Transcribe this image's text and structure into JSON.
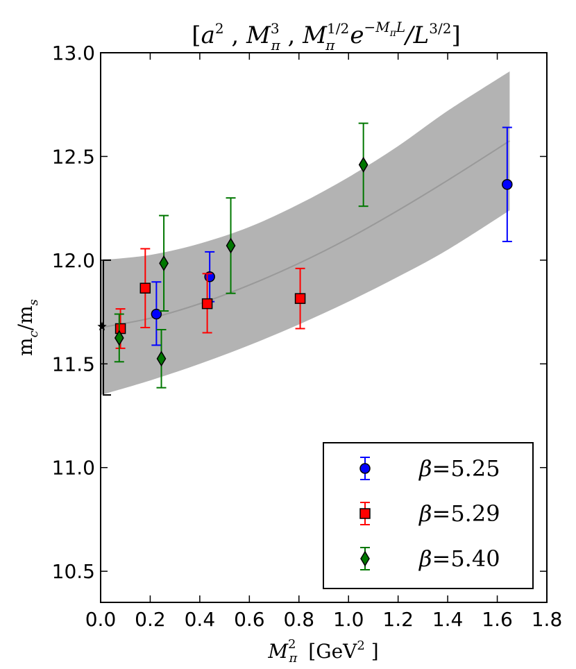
{
  "chart_data": {
    "type": "scatter",
    "title": {
      "open": "[",
      "t1": "a",
      "t1_sup": "2",
      "sep1": " , ",
      "t2": "M",
      "t2_sub": "π",
      "t2_sup": "3",
      "sep2": " , ",
      "t3": "M",
      "t3_sub": "π",
      "t3_sup": "1/2",
      "t3_exp": "e",
      "t3_exp_sup": "−M",
      "t3_exp_sub": "π",
      "t3_exp_sup_tail": "L",
      "t3_div": "/L",
      "t3_div_sup": "3/2",
      "close": "]"
    },
    "xlabel": {
      "main": "M",
      "sub": "π",
      "sup": "2",
      "unit_open": "[GeV",
      "unit_sup": "2",
      "unit_close": " ]"
    },
    "ylabel": {
      "main": "m",
      "sub1": "c",
      "slash": "/m",
      "sub2": "s"
    },
    "xlim": [
      0.0,
      1.8
    ],
    "ylim": [
      10.35,
      13.0
    ],
    "xticks": [
      "0.0",
      "0.2",
      "0.4",
      "0.6",
      "0.8",
      "1.0",
      "1.2",
      "1.4",
      "1.6",
      "1.8"
    ],
    "yticks": [
      "10.5",
      "11.0",
      "11.5",
      "12.0",
      "12.5",
      "13.0"
    ],
    "grid": false,
    "legend_position": "bottom-right",
    "band": {
      "color": "#b3b3b3",
      "line_color": "#999999",
      "x": [
        0.0,
        0.2,
        0.4,
        0.6,
        0.8,
        1.0,
        1.2,
        1.4,
        1.65
      ],
      "center": [
        11.675,
        11.72,
        11.79,
        11.88,
        11.985,
        12.105,
        12.24,
        12.385,
        12.575
      ],
      "lower": [
        11.35,
        11.42,
        11.5,
        11.59,
        11.69,
        11.8,
        11.92,
        12.05,
        12.24
      ],
      "upper": [
        12.0,
        12.025,
        12.08,
        12.16,
        12.27,
        12.4,
        12.55,
        12.72,
        12.91
      ]
    },
    "physical_point": {
      "x": 0.0,
      "y": 11.68,
      "err_low": 11.35,
      "err_high": 12.0,
      "color": "#000000"
    },
    "series": [
      {
        "name": "β=5.25",
        "legend": {
          "symbol": "β",
          "rest": "=5.25"
        },
        "marker": "circle",
        "color": "#0000ff",
        "points": [
          {
            "x": 0.225,
            "y": 11.74,
            "lo": 11.59,
            "hi": 11.895
          },
          {
            "x": 0.44,
            "y": 11.92,
            "lo": 11.8,
            "hi": 12.04
          },
          {
            "x": 1.64,
            "y": 12.365,
            "lo": 12.09,
            "hi": 12.64
          }
        ]
      },
      {
        "name": "β=5.29",
        "legend": {
          "symbol": "β",
          "rest": "=5.29"
        },
        "marker": "square",
        "color": "#ff0000",
        "points": [
          {
            "x": 0.08,
            "y": 11.67,
            "lo": 11.575,
            "hi": 11.765
          },
          {
            "x": 0.18,
            "y": 11.865,
            "lo": 11.675,
            "hi": 12.055
          },
          {
            "x": 0.43,
            "y": 11.79,
            "lo": 11.65,
            "hi": 11.935
          },
          {
            "x": 0.805,
            "y": 11.815,
            "lo": 11.67,
            "hi": 11.96
          }
        ]
      },
      {
        "name": "β=5.40",
        "legend": {
          "symbol": "β",
          "rest": "=5.40"
        },
        "marker": "diamond",
        "color": "#007700",
        "points": [
          {
            "x": 0.075,
            "y": 11.625,
            "lo": 11.51,
            "hi": 11.74
          },
          {
            "x": 0.245,
            "y": 11.525,
            "lo": 11.385,
            "hi": 11.665
          },
          {
            "x": 0.255,
            "y": 11.985,
            "lo": 11.755,
            "hi": 12.215
          },
          {
            "x": 0.525,
            "y": 12.07,
            "lo": 11.84,
            "hi": 12.3
          },
          {
            "x": 1.06,
            "y": 12.46,
            "lo": 12.26,
            "hi": 12.66
          }
        ]
      }
    ]
  }
}
